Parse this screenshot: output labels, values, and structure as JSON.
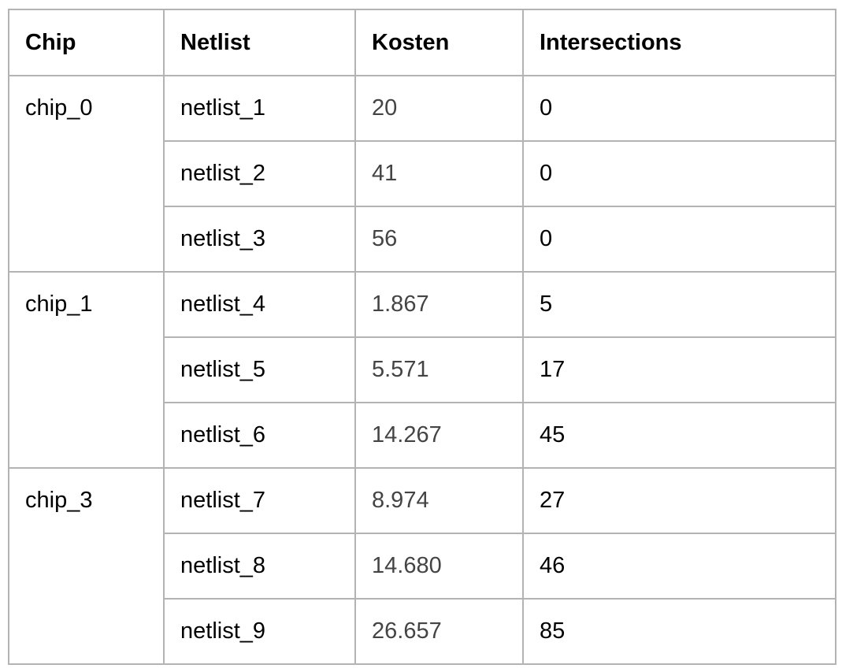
{
  "table": {
    "headers": {
      "chip": "Chip",
      "netlist": "Netlist",
      "kosten": "Kosten",
      "intersections": "Intersections"
    },
    "groups": [
      {
        "chip": "chip_0",
        "rows": [
          {
            "netlist": "netlist_1",
            "kosten": "20",
            "intersections": "0"
          },
          {
            "netlist": "netlist_2",
            "kosten": "41",
            "intersections": "0"
          },
          {
            "netlist": "netlist_3",
            "kosten": "56",
            "intersections": "0"
          }
        ]
      },
      {
        "chip": "chip_1",
        "rows": [
          {
            "netlist": "netlist_4",
            "kosten": "1.867",
            "intersections": "5"
          },
          {
            "netlist": "netlist_5",
            "kosten": "5.571",
            "intersections": "17"
          },
          {
            "netlist": "netlist_6",
            "kosten": "14.267",
            "intersections": "45"
          }
        ]
      },
      {
        "chip": "chip_3",
        "rows": [
          {
            "netlist": "netlist_7",
            "kosten": "8.974",
            "intersections": "27"
          },
          {
            "netlist": "netlist_8",
            "kosten": "14.680",
            "intersections": "46"
          },
          {
            "netlist": "netlist_9",
            "kosten": "26.657",
            "intersections": "85"
          }
        ]
      }
    ]
  }
}
